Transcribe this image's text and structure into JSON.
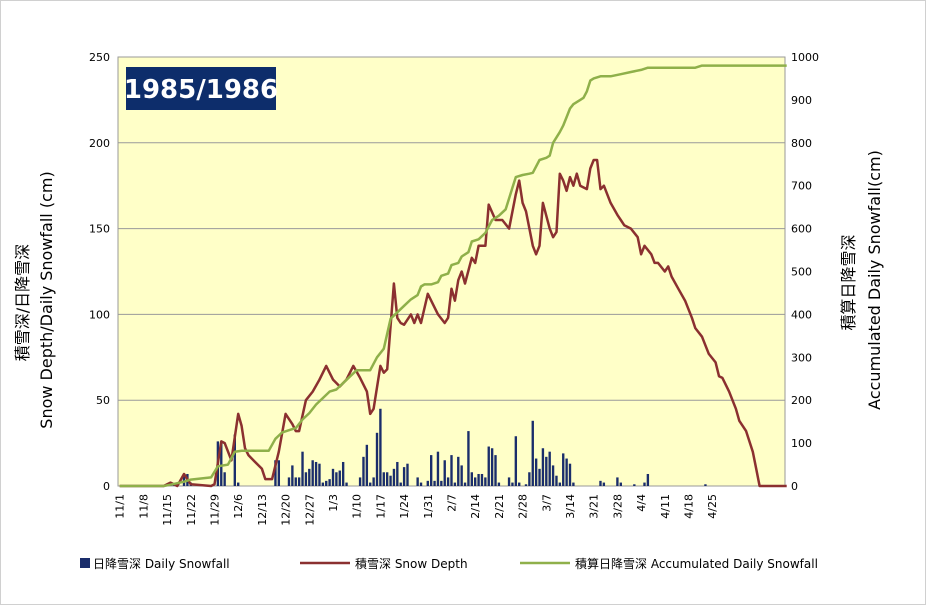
{
  "chart_data": {
    "type": "bar",
    "title": "1985/1986",
    "ylabel_left": "積雪深/日降雪深 Snow Depth/Daily Snowfall (cm)",
    "ylabel_right": "積算日降雪深 Accumulated Daily Snowfall(cm)",
    "ylim_left": [
      0,
      250
    ],
    "yticks_left": [
      "0",
      "50",
      "100",
      "150",
      "200",
      "250"
    ],
    "ylim_right": [
      0,
      1000
    ],
    "yticks_right": [
      "0",
      "100",
      "200",
      "300",
      "400",
      "500",
      "600",
      "700",
      "800",
      "900",
      "1000"
    ],
    "xticks": [
      "11/1",
      "11/8",
      "11/15",
      "11/22",
      "11/29",
      "12/6",
      "12/13",
      "12/20",
      "12/27",
      "1/3",
      "1/10",
      "1/17",
      "1/24",
      "1/31",
      "2/7",
      "2/14",
      "2/21",
      "2/28",
      "3/7",
      "3/14",
      "3/21",
      "3/28",
      "4/4",
      "4/11",
      "4/18",
      "4/25"
    ],
    "legend_position": "bottom",
    "grid": true,
    "series": [
      {
        "name": "日降雪深 Daily Snowfall",
        "kind": "bar",
        "axis": "left",
        "color": "#1a2d6b",
        "values": [
          0,
          0,
          0,
          0,
          0,
          0,
          0,
          0,
          0,
          0,
          0,
          0,
          0,
          0,
          1,
          2,
          1,
          0,
          0,
          7,
          7,
          2,
          0,
          0,
          0,
          0,
          0,
          0,
          0,
          26,
          26,
          8,
          0,
          0,
          30,
          2,
          0,
          0,
          0,
          0,
          0,
          0,
          0,
          0,
          0,
          0,
          15,
          15,
          0,
          0,
          5,
          12,
          5,
          5,
          20,
          8,
          10,
          15,
          14,
          13,
          2,
          3,
          4,
          10,
          8,
          9,
          14,
          2,
          0,
          0,
          0,
          5,
          17,
          24,
          2,
          5,
          31,
          45,
          8,
          8,
          6,
          10,
          14,
          2,
          11,
          13,
          0,
          0,
          5,
          2,
          0,
          3,
          18,
          3,
          20,
          3,
          15,
          5,
          18,
          2,
          17,
          12,
          2,
          32,
          8,
          5,
          7,
          7,
          5,
          23,
          22,
          18,
          2,
          0,
          0,
          5,
          2,
          29,
          2,
          0,
          1,
          8,
          38,
          16,
          10,
          22,
          17,
          20,
          12,
          6,
          2,
          19,
          16,
          13,
          2,
          0,
          0,
          0,
          0,
          0,
          0,
          0,
          3,
          2,
          0,
          0,
          0,
          5,
          2,
          0,
          0,
          0,
          1,
          0,
          0,
          2,
          7,
          0,
          0,
          0,
          0,
          0,
          0,
          0,
          0,
          0,
          0,
          0,
          0,
          0,
          0,
          0,
          0,
          1,
          0,
          0,
          0,
          0,
          0,
          0,
          0,
          0,
          0,
          0,
          0,
          0,
          0,
          0,
          0,
          0,
          0,
          0,
          0,
          0,
          0
        ]
      },
      {
        "name": "積雪深 Snow Depth",
        "kind": "line",
        "axis": "left",
        "color": "#8b3030",
        "points": [
          [
            0,
            0
          ],
          [
            13,
            0
          ],
          [
            15,
            2
          ],
          [
            17,
            0
          ],
          [
            19,
            7
          ],
          [
            21,
            1
          ],
          [
            27,
            0
          ],
          [
            28,
            1
          ],
          [
            30,
            26
          ],
          [
            31,
            25
          ],
          [
            33,
            15
          ],
          [
            35,
            42
          ],
          [
            36,
            35
          ],
          [
            37,
            22
          ],
          [
            38,
            18
          ],
          [
            40,
            14
          ],
          [
            42,
            10
          ],
          [
            43,
            4
          ],
          [
            45,
            4
          ],
          [
            47,
            20
          ],
          [
            49,
            42
          ],
          [
            51,
            36
          ],
          [
            52,
            32
          ],
          [
            53,
            32
          ],
          [
            55,
            50
          ],
          [
            57,
            55
          ],
          [
            59,
            62
          ],
          [
            61,
            70
          ],
          [
            63,
            62
          ],
          [
            65,
            58
          ],
          [
            67,
            62
          ],
          [
            69,
            70
          ],
          [
            71,
            63
          ],
          [
            73,
            55
          ],
          [
            74,
            42
          ],
          [
            75,
            45
          ],
          [
            77,
            70
          ],
          [
            78,
            66
          ],
          [
            79,
            68
          ],
          [
            81,
            118
          ],
          [
            82,
            98
          ],
          [
            83,
            95
          ],
          [
            84,
            94
          ],
          [
            86,
            100
          ],
          [
            87,
            95
          ],
          [
            88,
            100
          ],
          [
            89,
            95
          ],
          [
            91,
            112
          ],
          [
            92,
            108
          ],
          [
            94,
            100
          ],
          [
            96,
            95
          ],
          [
            97,
            98
          ],
          [
            98,
            115
          ],
          [
            99,
            108
          ],
          [
            100,
            120
          ],
          [
            101,
            125
          ],
          [
            102,
            118
          ],
          [
            104,
            133
          ],
          [
            105,
            130
          ],
          [
            106,
            140
          ],
          [
            108,
            140
          ],
          [
            109,
            164
          ],
          [
            111,
            155
          ],
          [
            113,
            155
          ],
          [
            115,
            150
          ],
          [
            117,
            170
          ],
          [
            118,
            178
          ],
          [
            119,
            165
          ],
          [
            120,
            160
          ],
          [
            122,
            140
          ],
          [
            123,
            135
          ],
          [
            124,
            140
          ],
          [
            125,
            165
          ],
          [
            127,
            150
          ],
          [
            128,
            145
          ],
          [
            129,
            148
          ],
          [
            130,
            182
          ],
          [
            131,
            178
          ],
          [
            132,
            172
          ],
          [
            133,
            180
          ],
          [
            134,
            175
          ],
          [
            135,
            182
          ],
          [
            136,
            175
          ],
          [
            138,
            173
          ],
          [
            139,
            185
          ],
          [
            140,
            190
          ],
          [
            141,
            190
          ],
          [
            142,
            173
          ],
          [
            143,
            175
          ],
          [
            145,
            165
          ],
          [
            147,
            158
          ],
          [
            148,
            155
          ],
          [
            149,
            152
          ],
          [
            151,
            150
          ],
          [
            153,
            145
          ],
          [
            154,
            135
          ],
          [
            155,
            140
          ],
          [
            157,
            135
          ],
          [
            158,
            130
          ],
          [
            159,
            130
          ],
          [
            161,
            125
          ],
          [
            162,
            128
          ],
          [
            163,
            122
          ],
          [
            165,
            115
          ],
          [
            167,
            108
          ],
          [
            169,
            98
          ],
          [
            170,
            92
          ],
          [
            172,
            87
          ],
          [
            173,
            82
          ],
          [
            174,
            77
          ],
          [
            176,
            72
          ],
          [
            177,
            64
          ],
          [
            178,
            63
          ],
          [
            180,
            55
          ],
          [
            182,
            45
          ],
          [
            183,
            38
          ],
          [
            185,
            32
          ],
          [
            187,
            20
          ],
          [
            188,
            10
          ],
          [
            189,
            0
          ],
          [
            197,
            0
          ]
        ]
      },
      {
        "name": "積算日降雪深 Accumulated Daily Snowfall",
        "kind": "line",
        "axis": "right",
        "color": "#8fb04a",
        "points": [
          [
            0,
            0
          ],
          [
            13,
            0
          ],
          [
            15,
            3
          ],
          [
            19,
            10
          ],
          [
            21,
            15
          ],
          [
            27,
            20
          ],
          [
            29,
            46
          ],
          [
            32,
            50
          ],
          [
            34,
            80
          ],
          [
            36,
            82
          ],
          [
            38,
            82
          ],
          [
            40,
            82
          ],
          [
            42,
            82
          ],
          [
            44,
            82
          ],
          [
            46,
            110
          ],
          [
            48,
            125
          ],
          [
            50,
            130
          ],
          [
            52,
            135
          ],
          [
            54,
            155
          ],
          [
            56,
            170
          ],
          [
            58,
            190
          ],
          [
            60,
            205
          ],
          [
            62,
            220
          ],
          [
            64,
            225
          ],
          [
            66,
            240
          ],
          [
            68,
            255
          ],
          [
            70,
            270
          ],
          [
            72,
            270
          ],
          [
            74,
            270
          ],
          [
            76,
            300
          ],
          [
            78,
            320
          ],
          [
            80,
            390
          ],
          [
            82,
            405
          ],
          [
            84,
            420
          ],
          [
            86,
            435
          ],
          [
            88,
            445
          ],
          [
            89,
            465
          ],
          [
            90,
            470
          ],
          [
            92,
            470
          ],
          [
            94,
            475
          ],
          [
            95,
            490
          ],
          [
            97,
            495
          ],
          [
            98,
            515
          ],
          [
            100,
            520
          ],
          [
            101,
            535
          ],
          [
            103,
            545
          ],
          [
            104,
            570
          ],
          [
            106,
            575
          ],
          [
            108,
            590
          ],
          [
            110,
            620
          ],
          [
            112,
            630
          ],
          [
            114,
            645
          ],
          [
            116,
            695
          ],
          [
            117,
            720
          ],
          [
            119,
            725
          ],
          [
            121,
            728
          ],
          [
            122,
            730
          ],
          [
            124,
            760
          ],
          [
            126,
            765
          ],
          [
            127,
            770
          ],
          [
            128,
            800
          ],
          [
            130,
            825
          ],
          [
            131,
            840
          ],
          [
            132,
            860
          ],
          [
            133,
            880
          ],
          [
            134,
            890
          ],
          [
            136,
            900
          ],
          [
            137,
            905
          ],
          [
            138,
            920
          ],
          [
            139,
            945
          ],
          [
            140,
            950
          ],
          [
            142,
            955
          ],
          [
            145,
            955
          ],
          [
            148,
            960
          ],
          [
            151,
            965
          ],
          [
            154,
            970
          ],
          [
            156,
            975
          ],
          [
            164,
            975
          ],
          [
            170,
            975
          ],
          [
            172,
            980
          ],
          [
            197,
            980
          ]
        ]
      }
    ]
  }
}
